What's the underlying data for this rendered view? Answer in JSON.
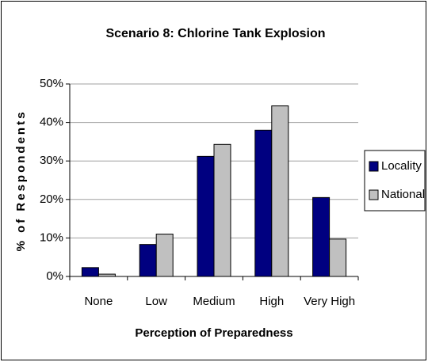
{
  "chart_data": {
    "type": "bar",
    "title": "Scenario 8: Chlorine Tank Explosion",
    "x_label": "Perception of Preparedness",
    "y_label": "% of Respondents",
    "categories": [
      "None",
      "Low",
      "Medium",
      "High",
      "Very High"
    ],
    "series": [
      {
        "name": "Locality",
        "color": "#000080",
        "values": [
          2.3,
          8.3,
          31.2,
          38,
          20.5
        ]
      },
      {
        "name": "National",
        "color": "#c0c0c0",
        "values": [
          0.6,
          11,
          34.3,
          44.3,
          9.7
        ]
      }
    ],
    "ylim": [
      0,
      50
    ],
    "yticks": [
      {
        "value": 0,
        "label": "0%"
      },
      {
        "value": 10,
        "label": "10%"
      },
      {
        "value": 20,
        "label": "20%"
      },
      {
        "value": 30,
        "label": "30%"
      },
      {
        "value": 40,
        "label": "40%"
      },
      {
        "value": 50,
        "label": "50%"
      }
    ],
    "grid": true,
    "legend": "right"
  }
}
